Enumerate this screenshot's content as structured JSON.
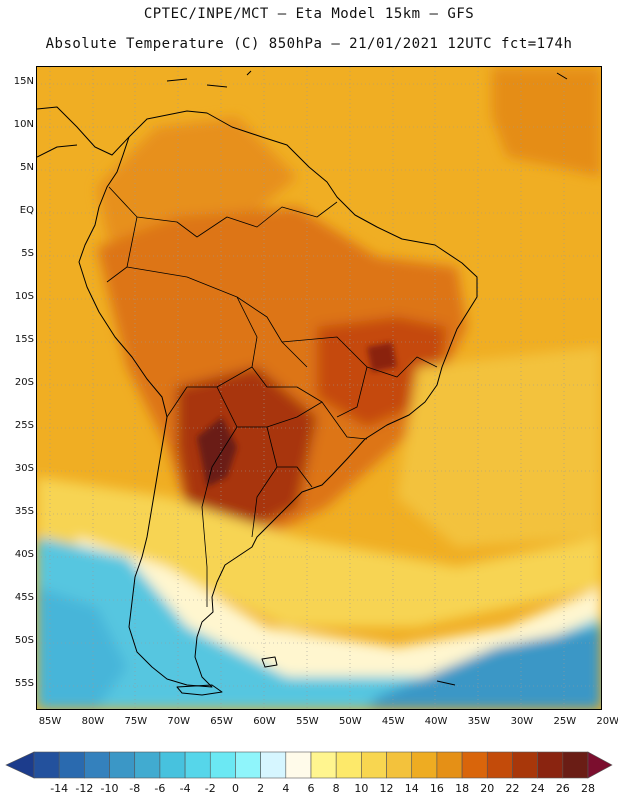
{
  "title": {
    "line1": "CPTEC/INPE/MCT –  Eta Model 15km – GFS",
    "line2": "Absolute Temperature (C) 850hPa – 21/01/2021 12UTC fct=174h"
  },
  "axes": {
    "lat_labels": [
      "15N",
      "10N",
      "5N",
      "EQ",
      "5S",
      "10S",
      "15S",
      "20S",
      "25S",
      "30S",
      "35S",
      "40S",
      "45S",
      "50S",
      "55S"
    ],
    "lon_labels": [
      "85W",
      "80W",
      "75W",
      "70W",
      "65W",
      "60W",
      "55W",
      "50W",
      "45W",
      "40W",
      "35W",
      "30W",
      "25W",
      "20W"
    ]
  },
  "colorbar": {
    "labels": [
      "-14",
      "-12",
      "-10",
      "-8",
      "-6",
      "-4",
      "-2",
      "0",
      "2",
      "4",
      "6",
      "8",
      "10",
      "12",
      "14",
      "16",
      "18",
      "20",
      "22",
      "24",
      "26",
      "28"
    ],
    "colors": [
      "#1c3c8c",
      "#23519d",
      "#2a6aaf",
      "#3481bd",
      "#3b97c6",
      "#41abd0",
      "#47c2de",
      "#56d6ea",
      "#6be8f3",
      "#8ff5fb",
      "#d6f6ff",
      "#fffbea",
      "#fff58f",
      "#fde96a",
      "#f8d650",
      "#f3c23c",
      "#eeac22",
      "#e59016",
      "#d9650b",
      "#c34b0a",
      "#a8370a",
      "#8a2410",
      "#6a1d15",
      "#7b0e2e"
    ]
  }
}
